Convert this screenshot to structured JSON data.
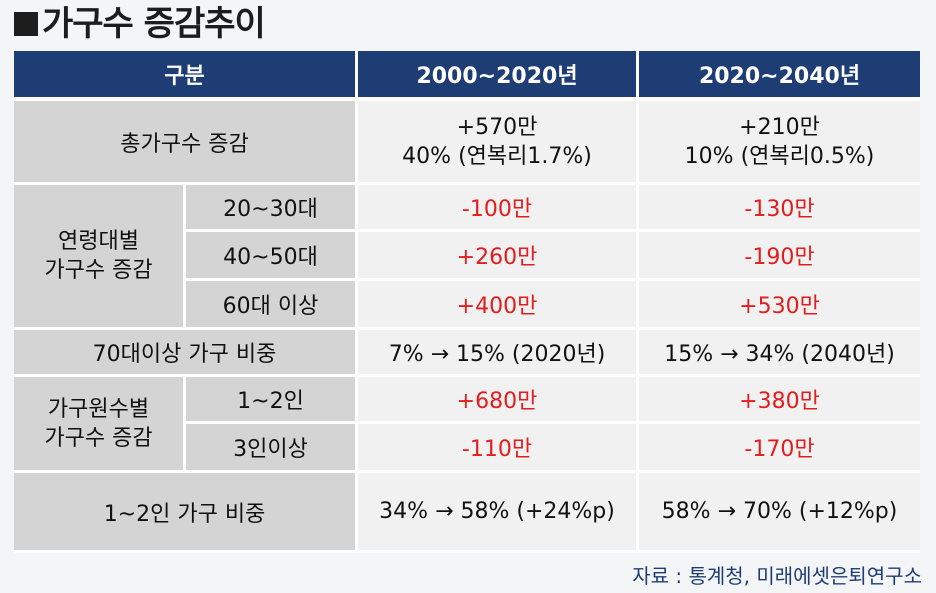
{
  "title": "가구수 증감추이",
  "header": {
    "category": "구분",
    "period1": "2000~2020년",
    "period2": "2020~2040년"
  },
  "total": {
    "label": "총가구수 증감",
    "p1_line1": "+570만",
    "p1_line2": "40% (연복리1.7%)",
    "p2_line1": "+210만",
    "p2_line2": "10% (연복리0.5%)"
  },
  "age_group": {
    "label_line1": "연령대별",
    "label_line2": "가구수 증감",
    "rows": [
      {
        "label": "20~30대",
        "p1": "-100만",
        "p2": "-130만"
      },
      {
        "label": "40~50대",
        "p1": "+260만",
        "p2": "-190만"
      },
      {
        "label": "60대 이상",
        "p1": "+400만",
        "p2": "+530만"
      }
    ]
  },
  "elderly_share": {
    "label": "70대이상 가구 비중",
    "p1": "7% → 15% (2020년)",
    "p2": "15% → 34% (2040년)"
  },
  "household_size": {
    "label_line1": "가구원수별",
    "label_line2": "가구수 증감",
    "rows": [
      {
        "label": "1~2인",
        "p1": "+680만",
        "p2": "+380만"
      },
      {
        "label": "3인이상",
        "p1": "-110만",
        "p2": "-170만"
      }
    ]
  },
  "small_share": {
    "label": "1~2인 가구 비중",
    "p1": "34% → 58% (+24%p)",
    "p2": "58% → 70% (+12%p)"
  },
  "source": "자료 : 통계청, 미래에셋은퇴연구소",
  "colors": {
    "header_bg": "#1f3d75",
    "label_bg": "#d4d4d4",
    "value_bg": "#f1f1f1",
    "negative_or_highlight": "#e51c1c",
    "source_text": "#1f3d75"
  }
}
